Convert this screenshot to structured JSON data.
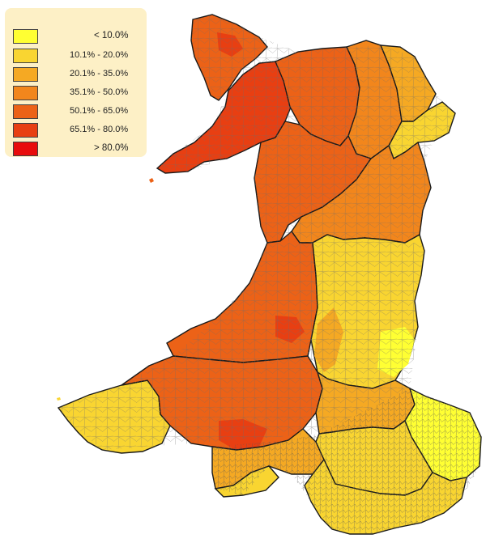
{
  "legend": {
    "items": [
      {
        "label": "< 10.0%",
        "color": "#ffff33",
        "kind": "edge"
      },
      {
        "label": "10.1% - 20.0%",
        "color": "#f9d531",
        "kind": "range"
      },
      {
        "label": "20.1% - 35.0%",
        "color": "#f5a923",
        "kind": "range"
      },
      {
        "label": "35.1% - 50.0%",
        "color": "#f2861c",
        "kind": "range"
      },
      {
        "label": "50.1% - 65.0%",
        "color": "#ec6217",
        "kind": "range"
      },
      {
        "label": "65.1% - 80.0%",
        "color": "#e83f12",
        "kind": "range"
      },
      {
        "label": "> 80.0%",
        "color": "#e80c0c",
        "kind": "edge"
      }
    ]
  },
  "map": {
    "border_color": "#1a1a1a",
    "inner_border_color": "#7a7a7a"
  }
}
